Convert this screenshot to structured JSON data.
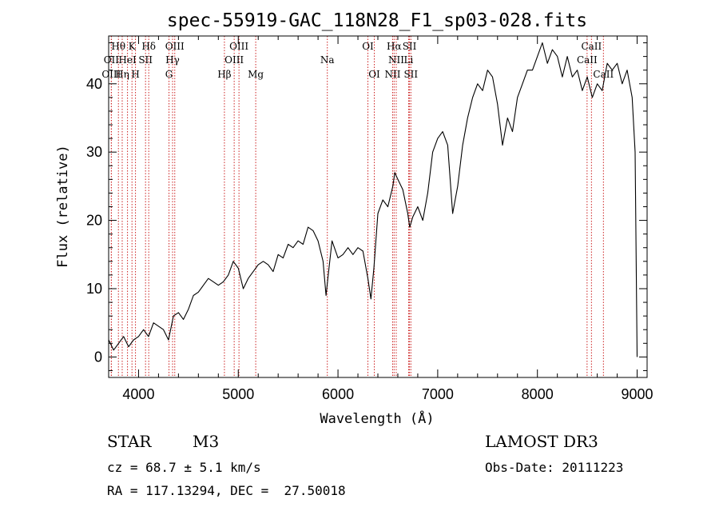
{
  "chart_data": {
    "type": "line",
    "title": "spec-55919-GAC_118N28_F1_sp03-028.fits",
    "xlabel": "Wavelength (Å)",
    "ylabel": "Flux (relative)",
    "xlim": [
      3700,
      9100
    ],
    "ylim": [
      -3,
      47
    ],
    "xticks": [
      4000,
      5000,
      6000,
      7000,
      8000,
      9000
    ],
    "yticks": [
      0,
      10,
      20,
      30,
      40
    ],
    "grid": false,
    "series": [
      {
        "name": "flux",
        "x": [
          3700,
          3750,
          3800,
          3850,
          3900,
          3950,
          4000,
          4050,
          4100,
          4150,
          4200,
          4250,
          4300,
          4350,
          4400,
          4450,
          4500,
          4550,
          4600,
          4650,
          4700,
          4750,
          4800,
          4850,
          4900,
          4950,
          5000,
          5050,
          5100,
          5150,
          5200,
          5250,
          5300,
          5350,
          5400,
          5450,
          5500,
          5550,
          5600,
          5650,
          5700,
          5750,
          5800,
          5850,
          5880,
          5910,
          5940,
          6000,
          6050,
          6100,
          6150,
          6200,
          6250,
          6300,
          6330,
          6360,
          6400,
          6450,
          6500,
          6550,
          6570,
          6600,
          6650,
          6700,
          6720,
          6750,
          6800,
          6850,
          6900,
          6950,
          7000,
          7050,
          7100,
          7150,
          7200,
          7250,
          7300,
          7350,
          7400,
          7450,
          7500,
          7550,
          7600,
          7650,
          7700,
          7750,
          7800,
          7850,
          7900,
          7950,
          8000,
          8050,
          8100,
          8150,
          8200,
          8250,
          8300,
          8350,
          8400,
          8450,
          8500,
          8550,
          8600,
          8650,
          8700,
          8750,
          8800,
          8850,
          8900,
          8950,
          8980,
          9000
        ],
        "values": [
          2.5,
          1,
          2,
          3,
          1.5,
          2.5,
          3,
          4,
          3,
          5,
          4.5,
          4,
          2.5,
          6,
          6.5,
          5.5,
          7,
          9,
          9.5,
          10.5,
          11.5,
          11,
          10.5,
          11,
          12,
          14,
          13,
          10,
          11.5,
          12.5,
          13.5,
          14,
          13.5,
          12.5,
          15,
          14.5,
          16.5,
          16,
          17,
          16.5,
          19,
          18.5,
          17,
          14,
          9,
          13,
          17,
          14.5,
          15,
          16,
          15,
          16,
          15.5,
          11.5,
          8.5,
          13,
          21,
          23,
          22,
          25,
          27,
          26,
          24.5,
          21,
          19,
          20.5,
          22,
          20,
          24,
          30,
          32,
          33,
          31,
          21,
          25,
          31,
          35,
          38,
          40,
          39,
          42,
          41,
          37,
          31,
          35,
          33,
          38,
          40,
          42,
          42,
          44,
          46,
          43,
          45,
          44,
          41,
          44,
          41,
          42,
          39,
          41,
          38,
          40,
          39,
          43,
          42,
          43,
          40,
          42,
          38,
          30,
          0
        ]
      }
    ],
    "spectral_lines": [
      {
        "name": "Hθ",
        "wl": 3798,
        "row": 0
      },
      {
        "name": "OII",
        "wl": 3727,
        "row": 1
      },
      {
        "name": "OIII",
        "wl": 3727,
        "row": 2
      },
      {
        "name": "Hη",
        "wl": 3836,
        "row": 2
      },
      {
        "name": "K",
        "wl": 3934,
        "row": 0
      },
      {
        "name": "HeI",
        "wl": 3889,
        "row": 1
      },
      {
        "name": "H",
        "wl": 3969,
        "row": 2
      },
      {
        "name": "Hδ",
        "wl": 4102,
        "row": 0
      },
      {
        "name": "SII",
        "wl": 4070,
        "row": 1
      },
      {
        "name": "OIII",
        "wl": 4363,
        "row": 0
      },
      {
        "name": "Hγ",
        "wl": 4341,
        "row": 1
      },
      {
        "name": "G",
        "wl": 4305,
        "row": 2
      },
      {
        "name": "OIII",
        "wl": 5007,
        "row": 0
      },
      {
        "name": "OIII",
        "wl": 4959,
        "row": 1
      },
      {
        "name": "Hβ",
        "wl": 4861,
        "row": 2
      },
      {
        "name": "Mg",
        "wl": 5175,
        "row": 2
      },
      {
        "name": "Na",
        "wl": 5893,
        "row": 1
      },
      {
        "name": "OI",
        "wl": 6300,
        "row": 0
      },
      {
        "name": "OI",
        "wl": 6364,
        "row": 2
      },
      {
        "name": "Hα",
        "wl": 6563,
        "row": 0
      },
      {
        "name": "SII",
        "wl": 6717,
        "row": 0
      },
      {
        "name": "NII",
        "wl": 6584,
        "row": 1
      },
      {
        "name": "Li",
        "wl": 6708,
        "row": 1
      },
      {
        "name": "NII",
        "wl": 6548,
        "row": 2
      },
      {
        "name": "SII",
        "wl": 6731,
        "row": 2
      },
      {
        "name": "CaII",
        "wl": 8542,
        "row": 0
      },
      {
        "name": "CaII",
        "wl": 8498,
        "row": 1
      },
      {
        "name": "CaII",
        "wl": 8662,
        "row": 2
      }
    ],
    "line_color": "#cc2222",
    "spectrum_color": "#000000"
  },
  "info": {
    "class": "STAR",
    "subclass": "M3",
    "survey": "LAMOST DR3",
    "cz": "cz = 68.7 ± 5.1 km/s",
    "obs_date": "Obs-Date: 20111223",
    "radec": "RA = 117.13294, DEC =  27.50018"
  }
}
